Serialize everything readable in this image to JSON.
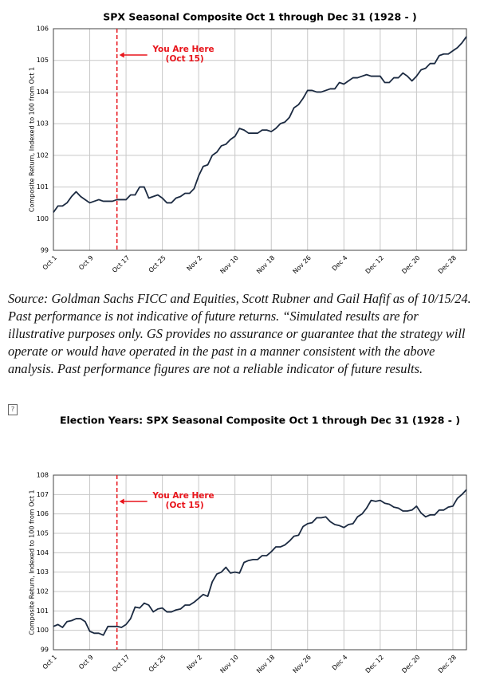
{
  "chart_data": [
    {
      "type": "line",
      "title": "SPX Seasonal Composite Oct 1 through Dec 31 (1928 - )",
      "ylabel": "Composite Return, Indexed to 100 from Oct 1",
      "categories": [
        "Oct 1",
        null,
        null,
        null,
        null,
        null,
        null,
        null,
        "Oct 9",
        null,
        null,
        null,
        null,
        null,
        null,
        null,
        "Oct 17",
        null,
        null,
        null,
        null,
        null,
        null,
        null,
        "Oct 25",
        null,
        null,
        null,
        null,
        null,
        null,
        null,
        "Nov 2",
        null,
        null,
        null,
        null,
        null,
        null,
        null,
        "Nov 10",
        null,
        null,
        null,
        null,
        null,
        null,
        null,
        "Nov 18",
        null,
        null,
        null,
        null,
        null,
        null,
        null,
        "Nov 26",
        null,
        null,
        null,
        null,
        null,
        null,
        null,
        "Dec 4",
        null,
        null,
        null,
        null,
        null,
        null,
        null,
        "Dec 12",
        null,
        null,
        null,
        null,
        null,
        null,
        null,
        "Dec 20",
        null,
        null,
        null,
        null,
        null,
        null,
        null,
        "Dec 28",
        null,
        null,
        null
      ],
      "series": [
        {
          "color": "#1b2a41",
          "values": [
            100.2,
            100.4,
            100.4,
            100.5,
            100.7,
            100.85,
            100.7,
            100.6,
            100.5,
            100.55,
            100.6,
            100.55,
            100.55,
            100.55,
            100.6,
            100.6,
            100.6,
            100.75,
            100.75,
            101.0,
            101.0,
            100.65,
            100.7,
            100.75,
            100.65,
            100.5,
            100.5,
            100.65,
            100.7,
            100.8,
            100.8,
            100.95,
            101.35,
            101.65,
            101.7,
            102.0,
            102.1,
            102.3,
            102.35,
            102.5,
            102.6,
            102.85,
            102.8,
            102.7,
            102.7,
            102.7,
            102.8,
            102.8,
            102.75,
            102.85,
            103.0,
            103.05,
            103.2,
            103.5,
            103.6,
            103.8,
            104.05,
            104.05,
            104.0,
            104.0,
            104.05,
            104.1,
            104.1,
            104.3,
            104.25,
            104.35,
            104.45,
            104.45,
            104.5,
            104.55,
            104.5,
            104.5,
            104.5,
            104.3,
            104.3,
            104.45,
            104.45,
            104.6,
            104.5,
            104.35,
            104.5,
            104.7,
            104.75,
            104.9,
            104.9,
            105.15,
            105.2,
            105.2,
            105.3,
            105.4,
            105.55,
            105.75
          ]
        }
      ],
      "ylim": [
        99,
        106
      ],
      "yticks": [
        99,
        100,
        101,
        102,
        103,
        104,
        105,
        106
      ],
      "grid": true,
      "vline": 14,
      "annotations": [
        "You Are Here",
        "(Oct 15)"
      ]
    },
    {
      "type": "line",
      "title": "Election Years: SPX Seasonal Composite Oct 1 through Dec 31 (1928 - )",
      "ylabel": "Composite Return, Indexed to 100 from Oct 1",
      "categories": [
        "Oct 1",
        null,
        null,
        null,
        null,
        null,
        null,
        null,
        "Oct 9",
        null,
        null,
        null,
        null,
        null,
        null,
        null,
        "Oct 17",
        null,
        null,
        null,
        null,
        null,
        null,
        null,
        "Oct 25",
        null,
        null,
        null,
        null,
        null,
        null,
        null,
        "Nov 2",
        null,
        null,
        null,
        null,
        null,
        null,
        null,
        "Nov 10",
        null,
        null,
        null,
        null,
        null,
        null,
        null,
        "Nov 18",
        null,
        null,
        null,
        null,
        null,
        null,
        null,
        "Nov 26",
        null,
        null,
        null,
        null,
        null,
        null,
        null,
        "Dec 4",
        null,
        null,
        null,
        null,
        null,
        null,
        null,
        "Dec 12",
        null,
        null,
        null,
        null,
        null,
        null,
        null,
        "Dec 20",
        null,
        null,
        null,
        null,
        null,
        null,
        null,
        "Dec 28",
        null,
        null,
        null
      ],
      "series": [
        {
          "color": "#1b2a41",
          "values": [
            100.2,
            100.3,
            100.15,
            100.45,
            100.5,
            100.6,
            100.6,
            100.45,
            99.95,
            99.85,
            99.85,
            99.75,
            100.2,
            100.2,
            100.2,
            100.15,
            100.3,
            100.6,
            101.2,
            101.15,
            101.4,
            101.3,
            100.95,
            101.1,
            101.15,
            100.95,
            100.95,
            101.05,
            101.1,
            101.3,
            101.3,
            101.45,
            101.65,
            101.85,
            101.75,
            102.5,
            102.9,
            103.0,
            103.25,
            102.95,
            103.0,
            102.95,
            103.5,
            103.6,
            103.65,
            103.65,
            103.85,
            103.85,
            104.05,
            104.3,
            104.3,
            104.4,
            104.6,
            104.85,
            104.9,
            105.35,
            105.5,
            105.55,
            105.8,
            105.8,
            105.85,
            105.6,
            105.45,
            105.4,
            105.3,
            105.45,
            105.5,
            105.85,
            106.0,
            106.3,
            106.7,
            106.65,
            106.7,
            106.55,
            106.5,
            106.35,
            106.3,
            106.15,
            106.15,
            106.2,
            106.4,
            106.05,
            105.85,
            105.95,
            105.95,
            106.2,
            106.2,
            106.35,
            106.4,
            106.8,
            107.0,
            107.25
          ]
        }
      ],
      "ylim": [
        99,
        108
      ],
      "yticks": [
        99,
        100,
        101,
        102,
        103,
        104,
        105,
        106,
        107,
        108
      ],
      "grid": true,
      "vline": 14,
      "annotations": [
        "You Are Here",
        "(Oct 15)"
      ]
    }
  ],
  "source": "Source: Goldman Sachs FICC and Equities, Scott Rubner and Gail Hafif as of 10/15/24. Past performance is not indicative of future returns. “Simulated results are for illustrative purposes only. GS provides no assurance or guarantee that the strategy will operate or would have operated in the past in a manner consistent with the above analysis. Past performance figures are not a reliable indicator of future results."
}
